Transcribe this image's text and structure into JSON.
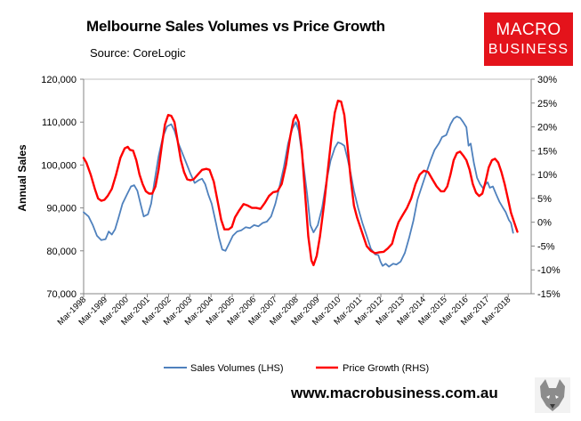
{
  "header": {
    "title": "Melbourne Sales Volumes vs Price Growth",
    "source": "Source: CoreLogic"
  },
  "logo": {
    "line1": "MACRO",
    "line2": "BUSINESS"
  },
  "footer": {
    "website": "www.macrobusiness.com.au"
  },
  "colors": {
    "sales": "#4f81bd",
    "growth": "#ff0000",
    "logo_bg": "#e4131b"
  },
  "chart_data": {
    "type": "line",
    "title": "Melbourne Sales Volumes vs Price Growth",
    "ylabel": "Annual Sales",
    "ylim": [
      70000,
      120000
    ],
    "y2lim": [
      -15,
      30
    ],
    "yticks": [
      "70,000",
      "80,000",
      "90,000",
      "100,000",
      "110,000",
      "120,000"
    ],
    "y2ticks": [
      "-15%",
      "-10%",
      "-5%",
      "0%",
      "5%",
      "10%",
      "15%",
      "20%",
      "25%",
      "30%"
    ],
    "xticks": [
      "Mar-1998",
      "Mar-1999",
      "Mar-2000",
      "Mar-2001",
      "Mar-2002",
      "Mar-2003",
      "Mar-2004",
      "Mar-2005",
      "Mar-2006",
      "Mar-2007",
      "Mar-2008",
      "Mar-2009",
      "Mar-2010",
      "Mar-2011",
      "Mar-2012",
      "Mar-2013",
      "Mar-2014",
      "Mar-2015",
      "Mar-2016",
      "Mar-2017",
      "Mar-2018"
    ],
    "xstart": 1998.17,
    "xend": 2019.25,
    "grid": false,
    "legend_position": "bottom",
    "series": [
      {
        "name": "Sales Volumes (LHS)",
        "axis": "left",
        "color": "#4f81bd",
        "points": [
          [
            1998.17,
            89000
          ],
          [
            1998.4,
            88000
          ],
          [
            1998.6,
            86000
          ],
          [
            1998.8,
            83500
          ],
          [
            1999.0,
            82500
          ],
          [
            1999.2,
            82700
          ],
          [
            1999.35,
            84500
          ],
          [
            1999.5,
            83800
          ],
          [
            1999.65,
            85000
          ],
          [
            1999.8,
            87500
          ],
          [
            2000.0,
            91000
          ],
          [
            2000.2,
            93000
          ],
          [
            2000.4,
            95000
          ],
          [
            2000.55,
            95300
          ],
          [
            2000.7,
            94000
          ],
          [
            2000.85,
            91000
          ],
          [
            2001.0,
            88000
          ],
          [
            2001.2,
            88500
          ],
          [
            2001.35,
            91000
          ],
          [
            2001.5,
            96000
          ],
          [
            2001.7,
            102000
          ],
          [
            2001.9,
            106500
          ],
          [
            2002.1,
            109000
          ],
          [
            2002.3,
            109500
          ],
          [
            2002.45,
            108000
          ],
          [
            2002.6,
            105500
          ],
          [
            2002.8,
            103000
          ],
          [
            2003.0,
            100500
          ],
          [
            2003.2,
            98000
          ],
          [
            2003.4,
            95800
          ],
          [
            2003.6,
            96500
          ],
          [
            2003.75,
            96800
          ],
          [
            2003.9,
            95500
          ],
          [
            2004.05,
            93000
          ],
          [
            2004.2,
            91000
          ],
          [
            2004.4,
            86500
          ],
          [
            2004.55,
            83000
          ],
          [
            2004.7,
            80300
          ],
          [
            2004.85,
            80000
          ],
          [
            2005.0,
            81500
          ],
          [
            2005.2,
            83500
          ],
          [
            2005.4,
            84500
          ],
          [
            2005.6,
            84800
          ],
          [
            2005.8,
            85500
          ],
          [
            2006.0,
            85300
          ],
          [
            2006.2,
            86000
          ],
          [
            2006.4,
            85700
          ],
          [
            2006.6,
            86500
          ],
          [
            2006.8,
            86800
          ],
          [
            2007.0,
            88000
          ],
          [
            2007.2,
            91000
          ],
          [
            2007.4,
            95000
          ],
          [
            2007.6,
            99500
          ],
          [
            2007.8,
            105000
          ],
          [
            2008.0,
            108500
          ],
          [
            2008.17,
            110000
          ],
          [
            2008.3,
            108000
          ],
          [
            2008.5,
            101000
          ],
          [
            2008.7,
            93000
          ],
          [
            2008.85,
            86000
          ],
          [
            2009.0,
            84300
          ],
          [
            2009.2,
            86000
          ],
          [
            2009.4,
            90000
          ],
          [
            2009.6,
            96000
          ],
          [
            2009.8,
            101000
          ],
          [
            2010.0,
            104000
          ],
          [
            2010.15,
            105300
          ],
          [
            2010.3,
            105000
          ],
          [
            2010.45,
            104500
          ],
          [
            2010.6,
            101500
          ],
          [
            2010.75,
            98000
          ],
          [
            2010.9,
            94000
          ],
          [
            2011.1,
            90000
          ],
          [
            2011.3,
            86500
          ],
          [
            2011.5,
            83500
          ],
          [
            2011.7,
            80500
          ],
          [
            2011.9,
            79200
          ],
          [
            2012.05,
            79000
          ],
          [
            2012.15,
            77500
          ],
          [
            2012.25,
            76500
          ],
          [
            2012.4,
            77000
          ],
          [
            2012.55,
            76300
          ],
          [
            2012.75,
            77000
          ],
          [
            2012.9,
            76800
          ],
          [
            2013.1,
            77500
          ],
          [
            2013.3,
            79500
          ],
          [
            2013.5,
            83000
          ],
          [
            2013.7,
            87000
          ],
          [
            2013.9,
            92000
          ],
          [
            2014.1,
            95000
          ],
          [
            2014.3,
            98000
          ],
          [
            2014.5,
            101000
          ],
          [
            2014.7,
            103500
          ],
          [
            2014.9,
            105000
          ],
          [
            2015.05,
            106500
          ],
          [
            2015.25,
            107000
          ],
          [
            2015.45,
            109500
          ],
          [
            2015.6,
            110800
          ],
          [
            2015.75,
            111300
          ],
          [
            2015.9,
            111000
          ],
          [
            2016.05,
            110000
          ],
          [
            2016.2,
            108800
          ],
          [
            2016.3,
            104500
          ],
          [
            2016.4,
            105000
          ],
          [
            2016.55,
            100500
          ],
          [
            2016.7,
            97000
          ],
          [
            2016.85,
            95500
          ],
          [
            2017.0,
            94500
          ],
          [
            2017.1,
            95500
          ],
          [
            2017.2,
            96000
          ],
          [
            2017.3,
            94700
          ],
          [
            2017.45,
            95000
          ],
          [
            2017.6,
            93200
          ],
          [
            2017.75,
            91500
          ],
          [
            2017.9,
            90200
          ],
          [
            2018.05,
            89000
          ],
          [
            2018.2,
            87200
          ],
          [
            2018.3,
            86500
          ],
          [
            2018.4,
            84200
          ]
        ]
      },
      {
        "name": "Price Growth (RHS)",
        "axis": "right",
        "color": "#ff0000",
        "points": [
          [
            1998.17,
            13.5
          ],
          [
            1998.3,
            12.5
          ],
          [
            1998.5,
            10
          ],
          [
            1998.7,
            7
          ],
          [
            1998.85,
            5
          ],
          [
            1999.0,
            4.5
          ],
          [
            1999.15,
            4.7
          ],
          [
            1999.3,
            5.5
          ],
          [
            1999.5,
            7
          ],
          [
            1999.7,
            10
          ],
          [
            1999.9,
            13.5
          ],
          [
            2000.1,
            15.5
          ],
          [
            2000.25,
            15.8
          ],
          [
            2000.35,
            15.2
          ],
          [
            2000.5,
            15
          ],
          [
            2000.65,
            13
          ],
          [
            2000.8,
            10
          ],
          [
            2000.95,
            8
          ],
          [
            2001.1,
            6.5
          ],
          [
            2001.25,
            6
          ],
          [
            2001.4,
            6
          ],
          [
            2001.55,
            7.5
          ],
          [
            2001.7,
            11
          ],
          [
            2001.85,
            16
          ],
          [
            2002.0,
            20.5
          ],
          [
            2002.15,
            22.5
          ],
          [
            2002.3,
            22.3
          ],
          [
            2002.45,
            21
          ],
          [
            2002.6,
            17
          ],
          [
            2002.75,
            13
          ],
          [
            2002.9,
            10.5
          ],
          [
            2003.05,
            9
          ],
          [
            2003.2,
            8.8
          ],
          [
            2003.35,
            9
          ],
          [
            2003.55,
            10
          ],
          [
            2003.75,
            11
          ],
          [
            2003.95,
            11.2
          ],
          [
            2004.1,
            11
          ],
          [
            2004.3,
            8.5
          ],
          [
            2004.5,
            4
          ],
          [
            2004.65,
            0.5
          ],
          [
            2004.8,
            -1.5
          ],
          [
            2005.0,
            -1.5
          ],
          [
            2005.15,
            -1
          ],
          [
            2005.3,
            1
          ],
          [
            2005.5,
            2.5
          ],
          [
            2005.7,
            3.8
          ],
          [
            2005.9,
            3.5
          ],
          [
            2006.1,
            3
          ],
          [
            2006.3,
            3
          ],
          [
            2006.5,
            2.8
          ],
          [
            2006.7,
            4
          ],
          [
            2006.9,
            5.5
          ],
          [
            2007.1,
            6.3
          ],
          [
            2007.3,
            6.5
          ],
          [
            2007.5,
            8
          ],
          [
            2007.7,
            12
          ],
          [
            2007.9,
            18
          ],
          [
            2008.05,
            21.5
          ],
          [
            2008.17,
            22.5
          ],
          [
            2008.3,
            21
          ],
          [
            2008.45,
            15
          ],
          [
            2008.6,
            6
          ],
          [
            2008.75,
            -3
          ],
          [
            2008.9,
            -8
          ],
          [
            2009.0,
            -9
          ],
          [
            2009.15,
            -7
          ],
          [
            2009.3,
            -3
          ],
          [
            2009.5,
            4
          ],
          [
            2009.7,
            12
          ],
          [
            2009.85,
            18
          ],
          [
            2010.0,
            23
          ],
          [
            2010.15,
            25.5
          ],
          [
            2010.3,
            25.3
          ],
          [
            2010.45,
            22.5
          ],
          [
            2010.6,
            16
          ],
          [
            2010.75,
            9
          ],
          [
            2010.9,
            3.5
          ],
          [
            2011.05,
            1
          ],
          [
            2011.2,
            -1
          ],
          [
            2011.35,
            -3
          ],
          [
            2011.5,
            -5
          ],
          [
            2011.7,
            -6
          ],
          [
            2011.9,
            -6.5
          ],
          [
            2012.1,
            -6.3
          ],
          [
            2012.3,
            -6.2
          ],
          [
            2012.5,
            -5.5
          ],
          [
            2012.7,
            -4.5
          ],
          [
            2012.85,
            -2
          ],
          [
            2013.0,
            0
          ],
          [
            2013.2,
            1.5
          ],
          [
            2013.4,
            3
          ],
          [
            2013.6,
            5
          ],
          [
            2013.8,
            8
          ],
          [
            2014.0,
            10
          ],
          [
            2014.2,
            10.8
          ],
          [
            2014.4,
            10.5
          ],
          [
            2014.6,
            9
          ],
          [
            2014.8,
            7.5
          ],
          [
            2015.0,
            6.5
          ],
          [
            2015.15,
            6.5
          ],
          [
            2015.3,
            7.5
          ],
          [
            2015.45,
            10
          ],
          [
            2015.6,
            13
          ],
          [
            2015.75,
            14.5
          ],
          [
            2015.9,
            14.8
          ],
          [
            2016.05,
            14
          ],
          [
            2016.2,
            13
          ],
          [
            2016.35,
            11
          ],
          [
            2016.5,
            8
          ],
          [
            2016.65,
            6.2
          ],
          [
            2016.8,
            5.5
          ],
          [
            2016.95,
            6
          ],
          [
            2017.1,
            8.5
          ],
          [
            2017.25,
            11.5
          ],
          [
            2017.4,
            13
          ],
          [
            2017.55,
            13.3
          ],
          [
            2017.7,
            12.5
          ],
          [
            2017.85,
            10.5
          ],
          [
            2018.0,
            8
          ],
          [
            2018.15,
            5
          ],
          [
            2018.3,
            2
          ],
          [
            2018.45,
            0
          ],
          [
            2018.6,
            -2
          ]
        ]
      }
    ]
  }
}
